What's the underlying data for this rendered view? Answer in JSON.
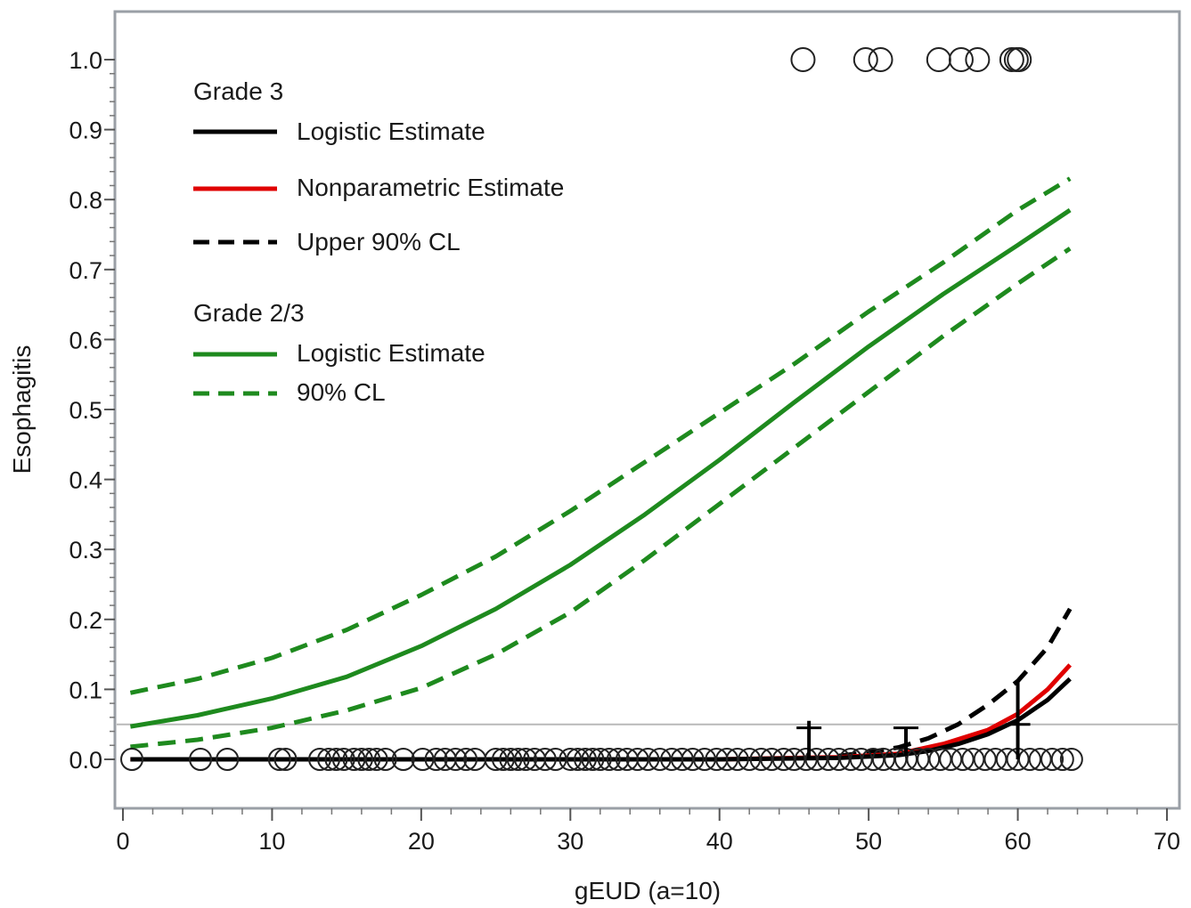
{
  "chart_data": {
    "type": "line",
    "title": "",
    "xlabel": "gEUD (a=10)",
    "ylabel": "Esophagitis",
    "xlim": [
      0,
      70
    ],
    "ylim": [
      -0.07,
      1.07
    ],
    "x_ticks": [
      0,
      10,
      20,
      30,
      40,
      50,
      60,
      70
    ],
    "y_ticks": [
      0.0,
      0.1,
      0.2,
      0.3,
      0.4,
      0.5,
      0.6,
      0.7,
      0.8,
      0.9,
      1.0
    ],
    "reference_line_y": 0.05,
    "grid": false,
    "legend_position": "top-left",
    "legend": [
      {
        "group": "Grade 3",
        "entries": [
          {
            "label": "Logistic Estimate",
            "color": "#000000",
            "style": "solid"
          },
          {
            "label": "Nonparametric Estimate",
            "color": "#e00000",
            "style": "solid"
          },
          {
            "label": "Upper 90% CL",
            "color": "#000000",
            "style": "dashed"
          }
        ]
      },
      {
        "group": "Grade 2/3",
        "entries": [
          {
            "label": "Logistic Estimate",
            "color": "#1e8a1e",
            "style": "solid"
          },
          {
            "label": "90% CL",
            "color": "#1e8a1e",
            "style": "dashed"
          }
        ]
      }
    ],
    "series": [
      {
        "key": "g23_upper",
        "color": "#1e8a1e",
        "style": "dashed",
        "x": [
          0.5,
          5,
          10,
          15,
          20,
          25,
          30,
          35,
          40,
          45,
          50,
          55,
          60,
          63.5
        ],
        "y": [
          0.095,
          0.115,
          0.145,
          0.185,
          0.235,
          0.29,
          0.355,
          0.425,
          0.495,
          0.565,
          0.64,
          0.71,
          0.785,
          0.83
        ]
      },
      {
        "key": "g23_logistic",
        "color": "#1e8a1e",
        "style": "solid",
        "x": [
          0.5,
          5,
          10,
          15,
          20,
          25,
          30,
          35,
          40,
          45,
          50,
          55,
          60,
          63.5
        ],
        "y": [
          0.047,
          0.063,
          0.087,
          0.118,
          0.162,
          0.215,
          0.278,
          0.35,
          0.428,
          0.51,
          0.59,
          0.665,
          0.735,
          0.785
        ]
      },
      {
        "key": "g23_lower",
        "color": "#1e8a1e",
        "style": "dashed",
        "x": [
          0.5,
          5,
          10,
          15,
          20,
          25,
          30,
          35,
          40,
          45,
          50,
          55,
          60,
          63.5
        ],
        "y": [
          0.018,
          0.028,
          0.045,
          0.07,
          0.102,
          0.15,
          0.21,
          0.285,
          0.365,
          0.445,
          0.525,
          0.605,
          0.68,
          0.73
        ]
      },
      {
        "key": "g3_upper",
        "color": "#000000",
        "style": "dashed",
        "x": [
          48,
          50,
          52,
          54,
          56,
          58,
          60,
          62,
          63.5
        ],
        "y": [
          0.005,
          0.01,
          0.017,
          0.03,
          0.05,
          0.078,
          0.112,
          0.16,
          0.215
        ]
      },
      {
        "key": "g3_nonparametric",
        "color": "#e00000",
        "style": "solid",
        "x": [
          0.5,
          40,
          48,
          52,
          55,
          58,
          60,
          62,
          63.5
        ],
        "y": [
          0.0,
          0.0,
          0.003,
          0.008,
          0.022,
          0.042,
          0.065,
          0.1,
          0.135
        ]
      },
      {
        "key": "g3_logistic",
        "color": "#000000",
        "style": "solid",
        "x": [
          0.5,
          20,
          40,
          48,
          52,
          54,
          56,
          58,
          60,
          62,
          63.5
        ],
        "y": [
          0.0,
          0.0,
          0.0,
          0.002,
          0.006,
          0.012,
          0.022,
          0.036,
          0.056,
          0.085,
          0.115
        ]
      }
    ],
    "observed_events": {
      "y": 1.0,
      "x": [
        45.6,
        49.8,
        50.8,
        54.7,
        56.2,
        57.3,
        59.6,
        59.9,
        60.1
      ]
    },
    "observed_nonevents": {
      "y": 0.0,
      "x": [
        0.6,
        5.2,
        7.0,
        10.5,
        10.9,
        13.2,
        13.8,
        14.3,
        14.8,
        15.5,
        16.0,
        16.5,
        17.0,
        17.6,
        18.8,
        20.1,
        21.0,
        21.6,
        22.3,
        23.0,
        23.6,
        25.0,
        25.5,
        26.0,
        26.5,
        27.0,
        27.6,
        28.3,
        29.0,
        30.0,
        30.5,
        31.0,
        31.5,
        32.0,
        32.6,
        33.2,
        33.8,
        34.5,
        35.2,
        36.0,
        36.8,
        37.5,
        38.2,
        39.0,
        39.8,
        40.5,
        41.2,
        42.0,
        42.8,
        43.5,
        44.3,
        45.0,
        45.8,
        46.5,
        47.3,
        48.0,
        48.8,
        49.5,
        50.3,
        51.0,
        51.8,
        52.5,
        53.3,
        54.0,
        54.8,
        55.5,
        56.3,
        57.0,
        57.8,
        58.5,
        59.3,
        60.0,
        60.8,
        61.5,
        62.3,
        63.0,
        63.6
      ]
    },
    "error_bars": [
      {
        "x": 46.0,
        "y_low": 0.0,
        "y_high": 0.055
      },
      {
        "x": 52.5,
        "y_low": 0.005,
        "y_high": 0.045
      },
      {
        "x": 60.0,
        "y_low": 0.0,
        "y_high": 0.11
      }
    ]
  }
}
